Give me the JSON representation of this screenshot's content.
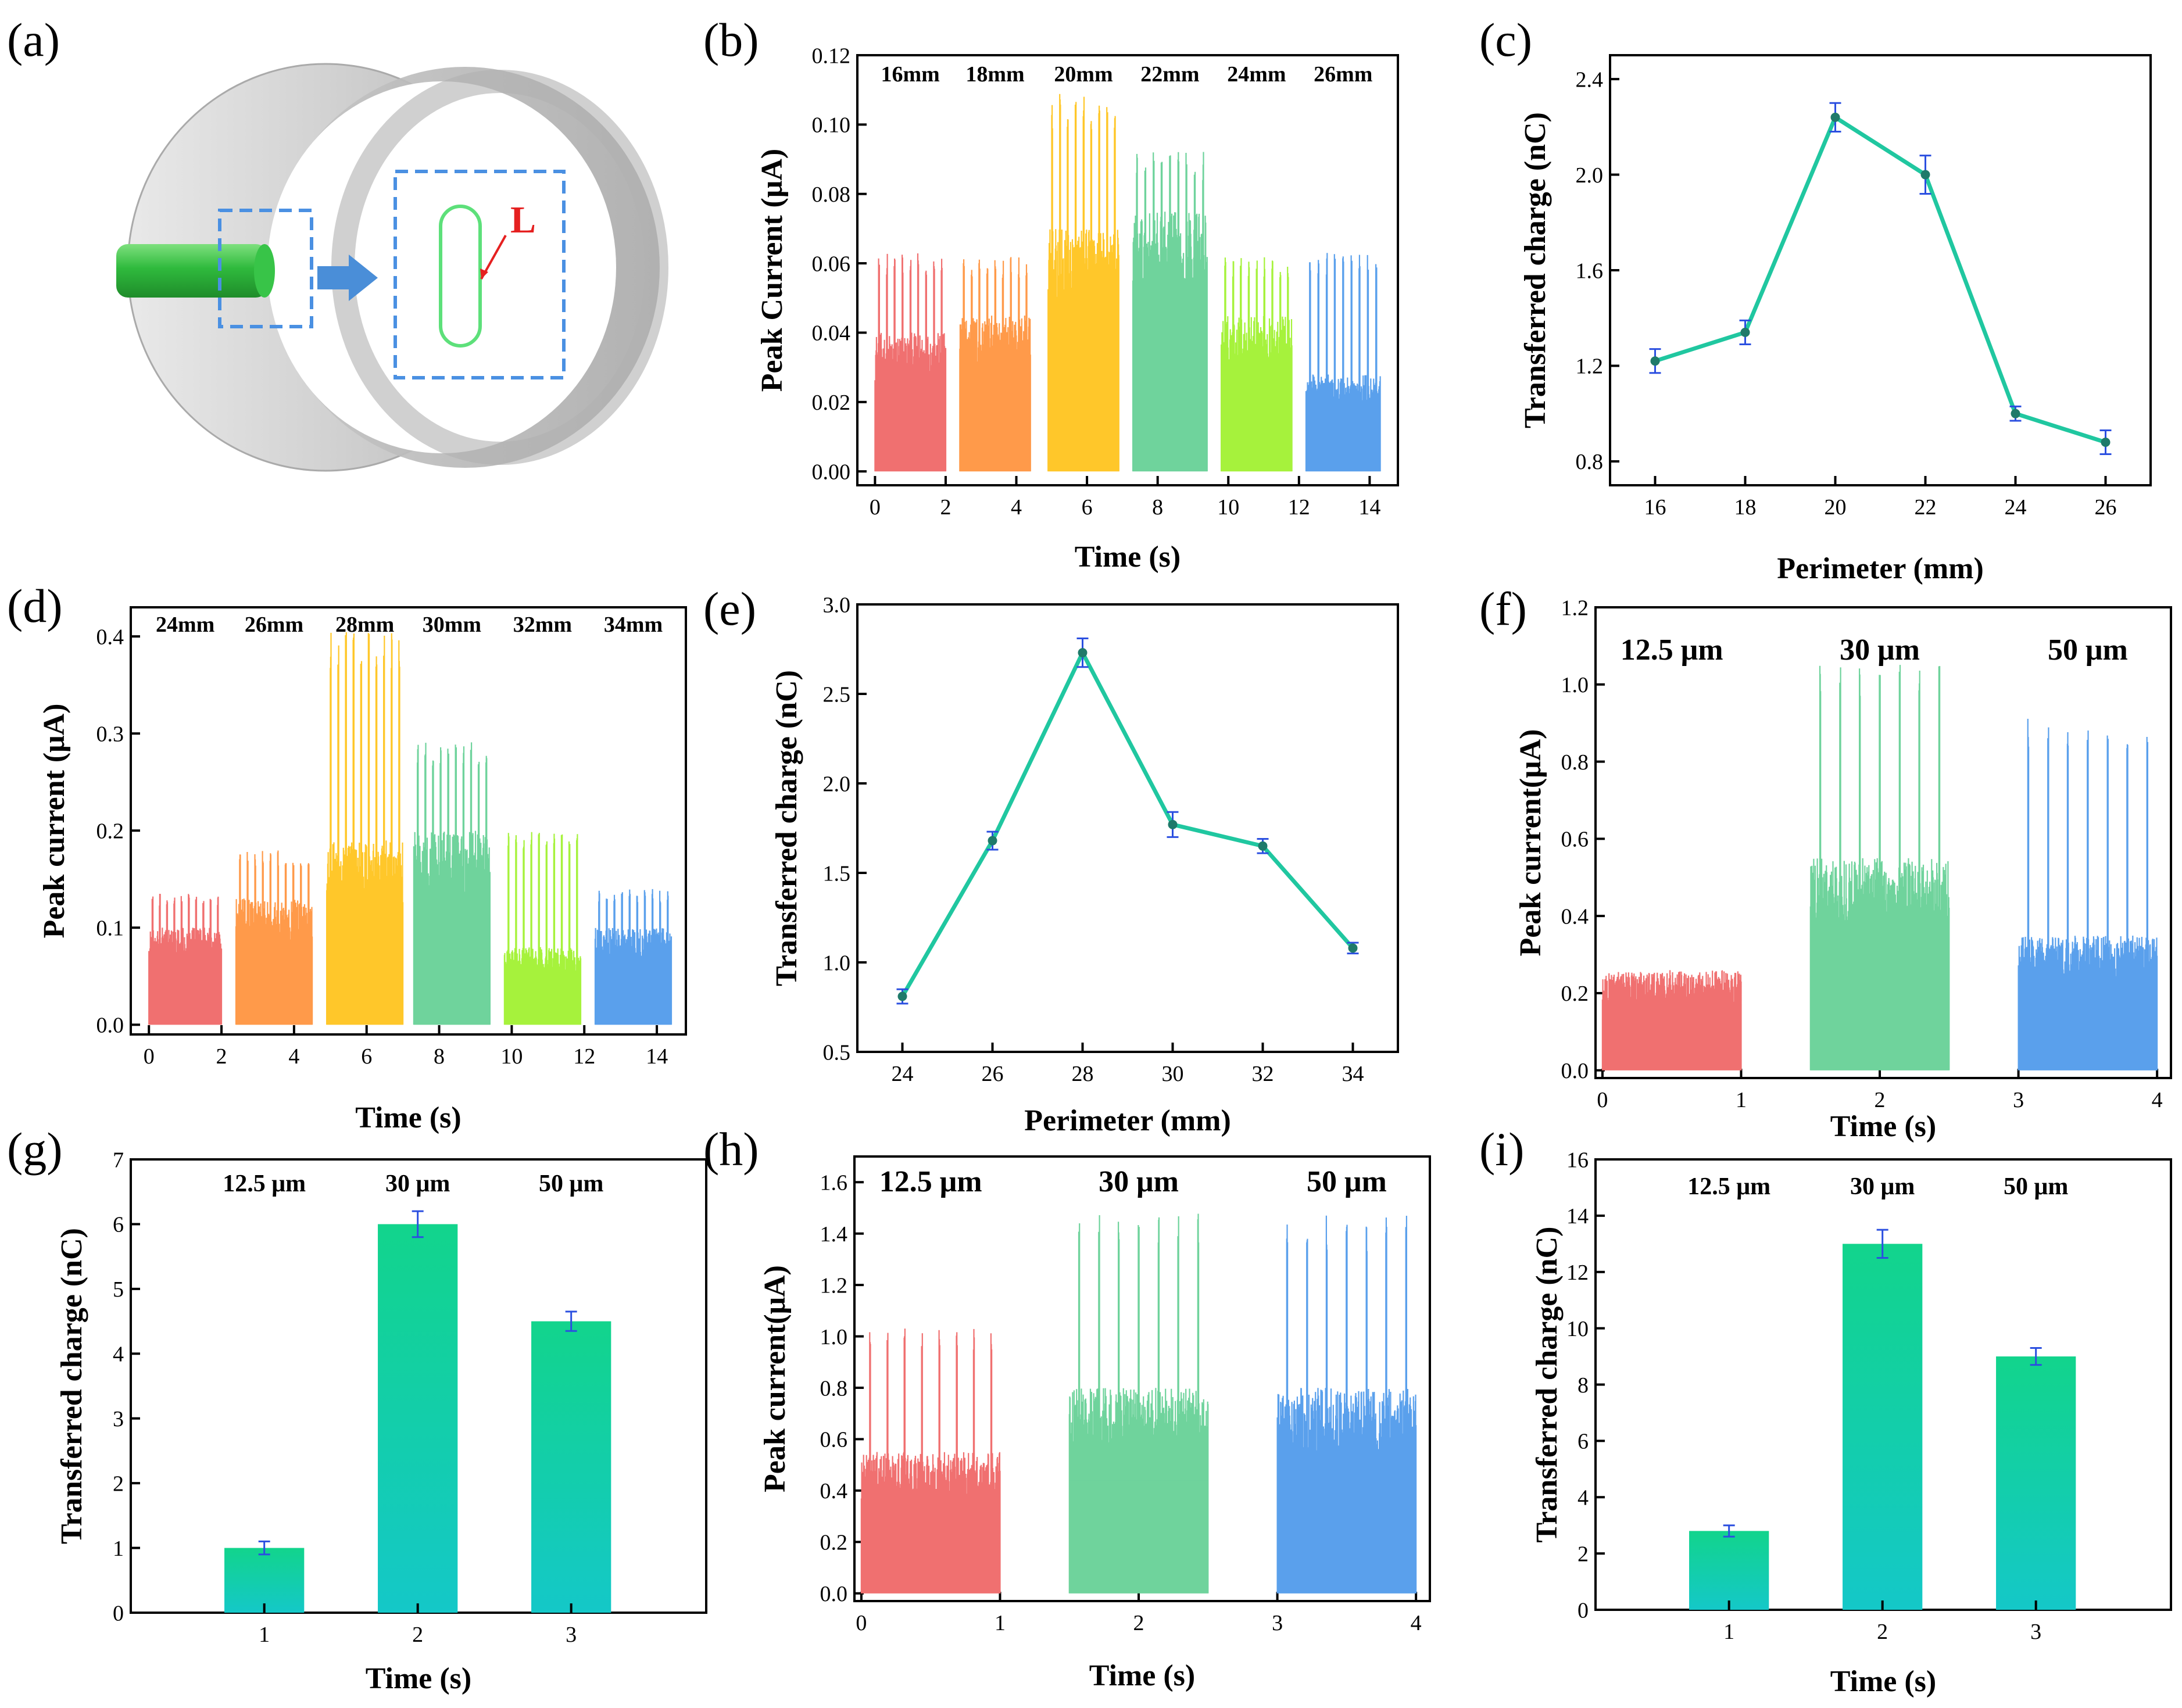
{
  "panel_labels": [
    "(a)",
    "(b)",
    "(c)",
    "(d)",
    "(e)",
    "(f)",
    "(g)",
    "(h)",
    "(i)"
  ],
  "schematic": {
    "label": "L"
  },
  "colors": {
    "red": "#f07070",
    "orange": "#ff9a4a",
    "yellow": "#ffc72a",
    "green": "#6fd39c",
    "lime": "#a6f23c",
    "blue": "#5aa0ec",
    "line": "#20c7a0",
    "marker": "#1f7a6a",
    "errbar": "#2b4fe0",
    "bar_top": "#12d48c",
    "bar_bottom": "#14c8c8"
  },
  "chart_data": [
    {
      "id": "b",
      "type": "line",
      "title": "",
      "xlabel": "Time (s)",
      "ylabel": "Peak Current (μA)",
      "xlim": [
        -0.5,
        14.8
      ],
      "ylim": [
        -0.004,
        0.12
      ],
      "xticks": [
        "0",
        "2",
        "4",
        "6",
        "8",
        "10",
        "12",
        "14"
      ],
      "yticks": [
        "0.00",
        "0.02",
        "0.04",
        "0.06",
        "0.08",
        "0.10",
        "0.12"
      ],
      "segment_labels": [
        "16mm",
        "18mm",
        "20mm",
        "22mm",
        "24mm",
        "26mm"
      ],
      "series": [
        {
          "name": "16mm",
          "color": "red",
          "x_range": [
            0.0,
            2.0
          ],
          "base": 0.04,
          "peak": 0.063,
          "spikes": 9
        },
        {
          "name": "18mm",
          "color": "orange",
          "x_range": [
            2.4,
            4.4
          ],
          "base": 0.045,
          "peak": 0.062,
          "spikes": 9
        },
        {
          "name": "20mm",
          "color": "yellow",
          "x_range": [
            4.9,
            6.9
          ],
          "base": 0.07,
          "peak": 0.109,
          "spikes": 9
        },
        {
          "name": "22mm",
          "color": "green",
          "x_range": [
            7.3,
            9.4
          ],
          "base": 0.075,
          "peak": 0.093,
          "spikes": 9
        },
        {
          "name": "24mm",
          "color": "lime",
          "x_range": [
            9.8,
            11.8
          ],
          "base": 0.045,
          "peak": 0.062,
          "spikes": 9
        },
        {
          "name": "26mm",
          "color": "blue",
          "x_range": [
            12.2,
            14.3
          ],
          "base": 0.028,
          "peak": 0.063,
          "spikes": 9
        }
      ]
    },
    {
      "id": "c",
      "type": "line",
      "title": "",
      "xlabel": "Perimeter (mm)",
      "ylabel": "Transferred charge (nC)",
      "xlim": [
        15,
        27
      ],
      "ylim": [
        0.7,
        2.5
      ],
      "xticks": [
        "16",
        "18",
        "20",
        "22",
        "24",
        "26"
      ],
      "yticks": [
        "0.8",
        "1.2",
        "1.6",
        "2.0",
        "2.4"
      ],
      "x": [
        16,
        18,
        20,
        22,
        24,
        26
      ],
      "y": [
        1.22,
        1.34,
        2.24,
        2.0,
        1.0,
        0.88
      ],
      "err": [
        0.05,
        0.05,
        0.06,
        0.08,
        0.03,
        0.05
      ]
    },
    {
      "id": "d",
      "type": "line",
      "title": "",
      "xlabel": "Time (s)",
      "ylabel": "Peak current (μA)",
      "xlim": [
        -0.5,
        14.8
      ],
      "ylim": [
        -0.01,
        0.43
      ],
      "xticks": [
        "0",
        "2",
        "4",
        "6",
        "8",
        "10",
        "12",
        "14"
      ],
      "yticks": [
        "0.0",
        "0.1",
        "0.2",
        "0.3",
        "0.4"
      ],
      "segment_labels": [
        "24mm",
        "26mm",
        "28mm",
        "30mm",
        "32mm",
        "34mm"
      ],
      "series": [
        {
          "name": "24mm",
          "color": "red",
          "x_range": [
            0.0,
            2.0
          ],
          "base": 0.1,
          "peak": 0.135,
          "spikes": 10
        },
        {
          "name": "26mm",
          "color": "orange",
          "x_range": [
            2.4,
            4.5
          ],
          "base": 0.13,
          "peak": 0.18,
          "spikes": 10
        },
        {
          "name": "28mm",
          "color": "yellow",
          "x_range": [
            4.9,
            7.0
          ],
          "base": 0.19,
          "peak": 0.405,
          "spikes": 10
        },
        {
          "name": "30mm",
          "color": "green",
          "x_range": [
            7.3,
            9.4
          ],
          "base": 0.2,
          "peak": 0.295,
          "spikes": 10
        },
        {
          "name": "32mm",
          "color": "lime",
          "x_range": [
            9.8,
            11.9
          ],
          "base": 0.08,
          "peak": 0.2,
          "spikes": 10
        },
        {
          "name": "34mm",
          "color": "blue",
          "x_range": [
            12.3,
            14.4
          ],
          "base": 0.1,
          "peak": 0.14,
          "spikes": 10
        }
      ]
    },
    {
      "id": "e",
      "type": "line",
      "title": "",
      "xlabel": "Perimeter (mm)",
      "ylabel": "Transferred charge (nC)",
      "xlim": [
        23,
        35
      ],
      "ylim": [
        0.5,
        3.0
      ],
      "xticks": [
        "24",
        "26",
        "28",
        "30",
        "32",
        "34"
      ],
      "yticks": [
        "0.5",
        "1.0",
        "1.5",
        "2.0",
        "2.5",
        "3.0"
      ],
      "x": [
        24,
        26,
        28,
        30,
        32,
        34
      ],
      "y": [
        0.81,
        1.68,
        2.73,
        1.77,
        1.65,
        1.08
      ],
      "err": [
        0.04,
        0.05,
        0.08,
        0.07,
        0.04,
        0.03
      ]
    },
    {
      "id": "f",
      "type": "line",
      "title": "",
      "xlabel": "Time (s)",
      "ylabel": "Peak current(μA)",
      "xlim": [
        -0.05,
        4.1
      ],
      "ylim": [
        -0.02,
        1.2
      ],
      "xticks": [
        "0",
        "1",
        "2",
        "3",
        "4"
      ],
      "yticks": [
        "0.0",
        "0.2",
        "0.4",
        "0.6",
        "0.8",
        "1.0",
        "1.2"
      ],
      "segment_labels": [
        "12.5 μm",
        "30 μm",
        "50 μm"
      ],
      "series": [
        {
          "name": "12.5 μm",
          "color": "red",
          "x_range": [
            0.0,
            1.0
          ],
          "base": 0.26,
          "peak": 0.31,
          "spikes": 0
        },
        {
          "name": "30 μm",
          "color": "green",
          "x_range": [
            1.5,
            2.5
          ],
          "base": 0.55,
          "peak": 1.06,
          "spikes": 7
        },
        {
          "name": "50 μm",
          "color": "blue",
          "x_range": [
            3.0,
            4.0
          ],
          "base": 0.35,
          "peak": 0.92,
          "spikes": 7
        }
      ]
    },
    {
      "id": "g",
      "type": "bar",
      "title": "",
      "xlabel": "Time (s)",
      "ylabel": "Transferred charge (nC)",
      "categories": [
        "1",
        "2",
        "3"
      ],
      "values": [
        1.0,
        6.0,
        4.5
      ],
      "err": [
        0.1,
        0.2,
        0.15
      ],
      "ylim": [
        0,
        7
      ],
      "yticks": [
        "0",
        "1",
        "2",
        "3",
        "4",
        "5",
        "6",
        "7"
      ],
      "bar_labels": [
        "12.5 μm",
        "30 μm",
        "50 μm"
      ]
    },
    {
      "id": "h",
      "type": "line",
      "title": "",
      "xlabel": "Time (s)",
      "ylabel": "Peak current(μA)",
      "xlim": [
        -0.05,
        4.1
      ],
      "ylim": [
        -0.03,
        1.7
      ],
      "xticks": [
        "0",
        "1",
        "2",
        "3",
        "4"
      ],
      "yticks": [
        "0.0",
        "0.2",
        "0.4",
        "0.6",
        "0.8",
        "1.0",
        "1.2",
        "1.4",
        "1.6"
      ],
      "segment_labels": [
        "12.5 μm",
        "30 μm",
        "50 μm"
      ],
      "series": [
        {
          "name": "12.5 μm",
          "color": "red",
          "x_range": [
            0.0,
            1.0
          ],
          "base": 0.55,
          "peak": 1.04,
          "spikes": 8
        },
        {
          "name": "30 μm",
          "color": "green",
          "x_range": [
            1.5,
            2.5
          ],
          "base": 0.8,
          "peak": 1.49,
          "spikes": 7
        },
        {
          "name": "50 μm",
          "color": "blue",
          "x_range": [
            3.0,
            4.0
          ],
          "base": 0.8,
          "peak": 1.47,
          "spikes": 7
        }
      ]
    },
    {
      "id": "i",
      "type": "bar",
      "title": "",
      "xlabel": "Time (s)",
      "ylabel": "Transferred charge (nC)",
      "categories": [
        "1",
        "2",
        "3"
      ],
      "values": [
        2.8,
        13.0,
        9.0
      ],
      "err": [
        0.2,
        0.5,
        0.3
      ],
      "ylim": [
        0,
        16
      ],
      "yticks": [
        "0",
        "2",
        "4",
        "6",
        "8",
        "10",
        "12",
        "14",
        "16"
      ],
      "bar_labels": [
        "12.5 μm",
        "30 μm",
        "50 μm"
      ]
    }
  ]
}
